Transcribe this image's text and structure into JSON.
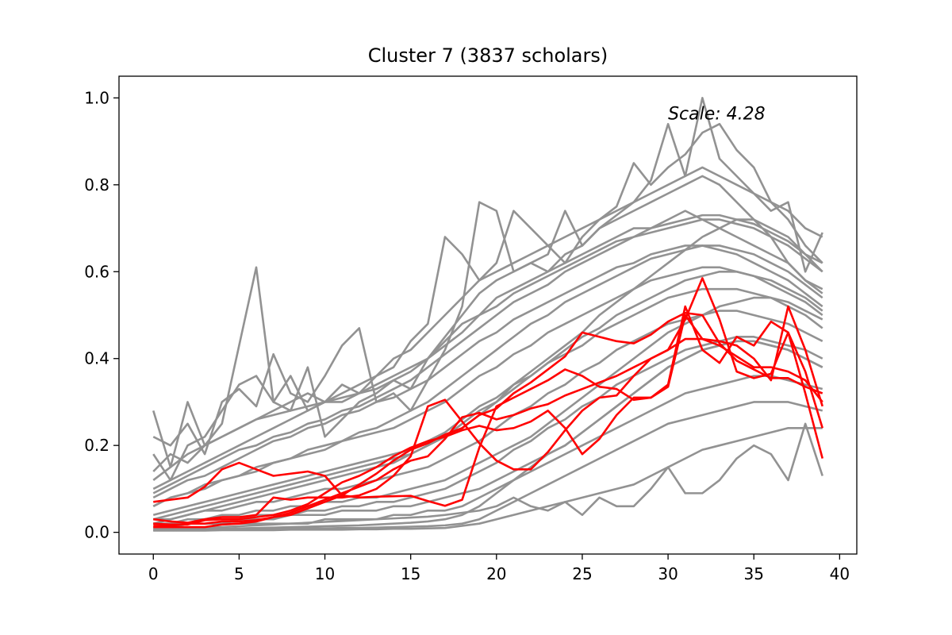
{
  "chart_data": {
    "type": "line",
    "title": "Cluster 7 (3837 scholars)",
    "annotation": "Scale: 4.28",
    "xlabel": "",
    "ylabel": "",
    "xlim": [
      -2,
      41
    ],
    "ylim": [
      -0.05,
      1.05
    ],
    "xticks": [
      0,
      5,
      10,
      15,
      20,
      25,
      30,
      35,
      40
    ],
    "xtick_labels": [
      "0",
      "5",
      "10",
      "15",
      "20",
      "25",
      "30",
      "35",
      "40"
    ],
    "yticks": [
      0.0,
      0.2,
      0.4,
      0.6,
      0.8,
      1.0
    ],
    "ytick_labels": [
      "0.0",
      "0.2",
      "0.4",
      "0.6",
      "0.8",
      "1.0"
    ],
    "grid": false,
    "colors": {
      "background_series": "#929292",
      "highlight_series": "#ff0000"
    },
    "x": [
      0,
      1,
      2,
      3,
      4,
      5,
      6,
      7,
      8,
      9,
      10,
      11,
      12,
      13,
      14,
      15,
      16,
      17,
      18,
      19,
      20,
      21,
      22,
      23,
      24,
      25,
      26,
      27,
      28,
      29,
      30,
      31,
      32,
      33,
      34,
      35,
      36,
      37,
      38,
      39
    ],
    "background_series": [
      {
        "values": [
          0.28,
          0.15,
          0.3,
          0.2,
          0.25,
          0.43,
          0.61,
          0.3,
          0.28,
          0.38,
          0.22,
          0.26,
          0.3,
          0.32,
          0.35,
          0.33,
          0.4,
          0.45,
          0.5,
          0.55,
          0.58,
          0.6,
          0.62,
          0.6,
          0.64,
          0.66,
          0.7,
          0.72,
          0.74,
          0.76,
          0.78,
          0.8,
          0.82,
          0.8,
          0.76,
          0.72,
          0.68,
          0.62,
          0.58,
          0.55
        ]
      },
      {
        "values": [
          0.22,
          0.2,
          0.25,
          0.18,
          0.3,
          0.33,
          0.29,
          0.41,
          0.32,
          0.3,
          0.36,
          0.43,
          0.47,
          0.3,
          0.32,
          0.28,
          0.35,
          0.42,
          0.52,
          0.76,
          0.74,
          0.6,
          0.62,
          0.64,
          0.74,
          0.66,
          0.7,
          0.73,
          0.76,
          0.81,
          0.94,
          0.82,
          1.0,
          0.86,
          0.82,
          0.78,
          0.74,
          0.76,
          0.6,
          0.69
        ]
      },
      {
        "values": [
          0.18,
          0.12,
          0.2,
          0.22,
          0.28,
          0.34,
          0.36,
          0.3,
          0.36,
          0.28,
          0.3,
          0.32,
          0.34,
          0.36,
          0.38,
          0.44,
          0.48,
          0.68,
          0.64,
          0.58,
          0.62,
          0.74,
          0.7,
          0.66,
          0.62,
          0.68,
          0.72,
          0.75,
          0.85,
          0.8,
          0.84,
          0.87,
          0.92,
          0.94,
          0.88,
          0.84,
          0.76,
          0.72,
          0.66,
          0.62
        ]
      },
      {
        "values": [
          0.14,
          0.18,
          0.16,
          0.2,
          0.22,
          0.24,
          0.26,
          0.28,
          0.3,
          0.32,
          0.3,
          0.34,
          0.32,
          0.36,
          0.4,
          0.42,
          0.46,
          0.5,
          0.54,
          0.58,
          0.6,
          0.62,
          0.64,
          0.66,
          0.68,
          0.7,
          0.72,
          0.74,
          0.76,
          0.78,
          0.8,
          0.82,
          0.84,
          0.82,
          0.8,
          0.78,
          0.76,
          0.74,
          0.7,
          0.68
        ]
      },
      {
        "values": [
          0.1,
          0.12,
          0.14,
          0.16,
          0.18,
          0.2,
          0.22,
          0.24,
          0.26,
          0.28,
          0.3,
          0.3,
          0.32,
          0.34,
          0.36,
          0.38,
          0.4,
          0.44,
          0.48,
          0.5,
          0.54,
          0.56,
          0.58,
          0.6,
          0.62,
          0.64,
          0.66,
          0.68,
          0.7,
          0.7,
          0.72,
          0.74,
          0.72,
          0.7,
          0.68,
          0.66,
          0.64,
          0.62,
          0.58,
          0.56
        ]
      },
      {
        "values": [
          0.08,
          0.1,
          0.12,
          0.13,
          0.15,
          0.17,
          0.19,
          0.21,
          0.22,
          0.24,
          0.25,
          0.27,
          0.28,
          0.3,
          0.31,
          0.33,
          0.35,
          0.38,
          0.41,
          0.44,
          0.46,
          0.49,
          0.51,
          0.53,
          0.55,
          0.57,
          0.59,
          0.61,
          0.62,
          0.64,
          0.65,
          0.66,
          0.66,
          0.65,
          0.64,
          0.62,
          0.6,
          0.58,
          0.55,
          0.52
        ]
      },
      {
        "values": [
          0.06,
          0.08,
          0.09,
          0.1,
          0.12,
          0.13,
          0.14,
          0.16,
          0.17,
          0.18,
          0.19,
          0.21,
          0.22,
          0.23,
          0.24,
          0.26,
          0.28,
          0.3,
          0.33,
          0.36,
          0.38,
          0.41,
          0.43,
          0.46,
          0.48,
          0.5,
          0.52,
          0.54,
          0.56,
          0.58,
          0.59,
          0.6,
          0.61,
          0.61,
          0.6,
          0.59,
          0.57,
          0.55,
          0.53,
          0.5
        ]
      },
      {
        "values": [
          0.04,
          0.05,
          0.06,
          0.07,
          0.08,
          0.09,
          0.1,
          0.11,
          0.12,
          0.13,
          0.14,
          0.15,
          0.16,
          0.17,
          0.18,
          0.19,
          0.21,
          0.23,
          0.26,
          0.29,
          0.31,
          0.34,
          0.36,
          0.39,
          0.41,
          0.43,
          0.46,
          0.48,
          0.5,
          0.52,
          0.54,
          0.55,
          0.56,
          0.56,
          0.56,
          0.55,
          0.54,
          0.52,
          0.5,
          0.47
        ]
      },
      {
        "values": [
          0.03,
          0.03,
          0.04,
          0.05,
          0.05,
          0.06,
          0.07,
          0.07,
          0.08,
          0.09,
          0.1,
          0.1,
          0.11,
          0.12,
          0.13,
          0.14,
          0.15,
          0.17,
          0.19,
          0.21,
          0.24,
          0.27,
          0.29,
          0.32,
          0.34,
          0.37,
          0.39,
          0.42,
          0.44,
          0.46,
          0.48,
          0.49,
          0.5,
          0.51,
          0.51,
          0.5,
          0.49,
          0.48,
          0.46,
          0.44
        ]
      },
      {
        "values": [
          0.02,
          0.02,
          0.02,
          0.03,
          0.03,
          0.03,
          0.04,
          0.04,
          0.04,
          0.05,
          0.05,
          0.06,
          0.06,
          0.07,
          0.07,
          0.08,
          0.09,
          0.1,
          0.12,
          0.14,
          0.16,
          0.19,
          0.21,
          0.24,
          0.26,
          0.29,
          0.31,
          0.34,
          0.36,
          0.38,
          0.4,
          0.42,
          0.43,
          0.44,
          0.45,
          0.45,
          0.44,
          0.43,
          0.42,
          0.4
        ]
      },
      {
        "values": [
          0.01,
          0.01,
          0.01,
          0.01,
          0.02,
          0.02,
          0.02,
          0.02,
          0.02,
          0.02,
          0.03,
          0.03,
          0.03,
          0.03,
          0.04,
          0.04,
          0.05,
          0.05,
          0.06,
          0.08,
          0.1,
          0.12,
          0.14,
          0.16,
          0.18,
          0.2,
          0.22,
          0.24,
          0.26,
          0.28,
          0.3,
          0.32,
          0.33,
          0.34,
          0.35,
          0.36,
          0.36,
          0.35,
          0.34,
          0.33
        ]
      },
      {
        "values": [
          0.005,
          0.005,
          0.005,
          0.006,
          0.006,
          0.007,
          0.007,
          0.008,
          0.008,
          0.009,
          0.009,
          0.01,
          0.01,
          0.011,
          0.012,
          0.013,
          0.014,
          0.016,
          0.02,
          0.03,
          0.05,
          0.07,
          0.09,
          0.11,
          0.13,
          0.15,
          0.17,
          0.19,
          0.21,
          0.23,
          0.25,
          0.26,
          0.27,
          0.28,
          0.29,
          0.3,
          0.3,
          0.3,
          0.29,
          0.28
        ]
      },
      {
        "values": [
          0.004,
          0.004,
          0.004,
          0.004,
          0.005,
          0.005,
          0.005,
          0.005,
          0.006,
          0.006,
          0.006,
          0.006,
          0.007,
          0.007,
          0.008,
          0.008,
          0.009,
          0.01,
          0.015,
          0.02,
          0.03,
          0.04,
          0.05,
          0.06,
          0.07,
          0.08,
          0.09,
          0.1,
          0.11,
          0.13,
          0.15,
          0.17,
          0.19,
          0.2,
          0.21,
          0.22,
          0.23,
          0.24,
          0.24,
          0.24
        ]
      },
      {
        "values": [
          0.005,
          0.006,
          0.008,
          0.01,
          0.012,
          0.014,
          0.016,
          0.018,
          0.02,
          0.022,
          0.024,
          0.026,
          0.028,
          0.03,
          0.032,
          0.034,
          0.036,
          0.04,
          0.045,
          0.05,
          0.06,
          0.08,
          0.06,
          0.05,
          0.07,
          0.04,
          0.08,
          0.06,
          0.06,
          0.1,
          0.15,
          0.09,
          0.09,
          0.12,
          0.17,
          0.2,
          0.18,
          0.12,
          0.25,
          0.13
        ]
      },
      {
        "values": [
          0.02,
          0.03,
          0.04,
          0.05,
          0.06,
          0.07,
          0.08,
          0.09,
          0.1,
          0.11,
          0.12,
          0.13,
          0.14,
          0.15,
          0.16,
          0.18,
          0.2,
          0.22,
          0.25,
          0.28,
          0.3,
          0.34,
          0.37,
          0.4,
          0.43,
          0.46,
          0.5,
          0.53,
          0.56,
          0.59,
          0.62,
          0.65,
          0.68,
          0.7,
          0.72,
          0.72,
          0.7,
          0.68,
          0.64,
          0.6
        ]
      },
      {
        "values": [
          0.12,
          0.15,
          0.18,
          0.2,
          0.22,
          0.24,
          0.26,
          0.27,
          0.28,
          0.29,
          0.3,
          0.31,
          0.32,
          0.33,
          0.35,
          0.37,
          0.4,
          0.43,
          0.46,
          0.5,
          0.52,
          0.55,
          0.57,
          0.59,
          0.61,
          0.63,
          0.65,
          0.67,
          0.68,
          0.7,
          0.71,
          0.72,
          0.73,
          0.73,
          0.72,
          0.71,
          0.69,
          0.67,
          0.64,
          0.62
        ]
      },
      {
        "values": [
          0.02,
          0.02,
          0.03,
          0.03,
          0.04,
          0.04,
          0.05,
          0.05,
          0.06,
          0.06,
          0.07,
          0.07,
          0.08,
          0.08,
          0.09,
          0.1,
          0.11,
          0.12,
          0.14,
          0.16,
          0.18,
          0.2,
          0.22,
          0.25,
          0.28,
          0.31,
          0.34,
          0.37,
          0.4,
          0.43,
          0.46,
          0.48,
          0.5,
          0.52,
          0.53,
          0.54,
          0.54,
          0.53,
          0.51,
          0.49
        ]
      },
      {
        "values": [
          0.09,
          0.11,
          0.13,
          0.15,
          0.17,
          0.19,
          0.2,
          0.22,
          0.23,
          0.25,
          0.26,
          0.28,
          0.29,
          0.31,
          0.33,
          0.35,
          0.38,
          0.41,
          0.44,
          0.47,
          0.5,
          0.53,
          0.55,
          0.57,
          0.6,
          0.62,
          0.64,
          0.66,
          0.68,
          0.69,
          0.7,
          0.71,
          0.72,
          0.72,
          0.71,
          0.7,
          0.68,
          0.66,
          0.63,
          0.6
        ]
      },
      {
        "values": [
          0.03,
          0.04,
          0.05,
          0.06,
          0.07,
          0.08,
          0.09,
          0.1,
          0.11,
          0.12,
          0.13,
          0.14,
          0.15,
          0.16,
          0.17,
          0.18,
          0.2,
          0.22,
          0.24,
          0.27,
          0.3,
          0.33,
          0.36,
          0.39,
          0.42,
          0.45,
          0.47,
          0.5,
          0.52,
          0.54,
          0.56,
          0.58,
          0.59,
          0.6,
          0.6,
          0.59,
          0.58,
          0.56,
          0.54,
          0.51
        ]
      },
      {
        "values": [
          0.01,
          0.01,
          0.02,
          0.02,
          0.02,
          0.03,
          0.03,
          0.03,
          0.04,
          0.04,
          0.04,
          0.05,
          0.05,
          0.05,
          0.06,
          0.06,
          0.07,
          0.08,
          0.09,
          0.1,
          0.12,
          0.14,
          0.16,
          0.18,
          0.2,
          0.23,
          0.26,
          0.29,
          0.32,
          0.35,
          0.38,
          0.4,
          0.42,
          0.43,
          0.44,
          0.44,
          0.43,
          0.42,
          0.4,
          0.38
        ]
      },
      {
        "values": [
          0.06,
          0.08,
          0.09,
          0.11,
          0.12,
          0.13,
          0.15,
          0.16,
          0.17,
          0.19,
          0.2,
          0.21,
          0.23,
          0.24,
          0.26,
          0.28,
          0.3,
          0.33,
          0.36,
          0.39,
          0.42,
          0.45,
          0.48,
          0.5,
          0.53,
          0.55,
          0.57,
          0.59,
          0.61,
          0.63,
          0.64,
          0.65,
          0.66,
          0.66,
          0.65,
          0.64,
          0.62,
          0.6,
          0.57,
          0.54
        ]
      },
      {
        "values": [
          0.005,
          0.005,
          0.006,
          0.007,
          0.008,
          0.009,
          0.01,
          0.011,
          0.012,
          0.013,
          0.014,
          0.015,
          0.016,
          0.018,
          0.02,
          0.022,
          0.025,
          0.03,
          0.04,
          0.06,
          0.09,
          0.12,
          0.15,
          0.18,
          0.2,
          0.23,
          0.26,
          0.29,
          0.32,
          0.35,
          0.38,
          0.4,
          0.42,
          0.43,
          0.44,
          0.44,
          0.43,
          0.42,
          0.4,
          0.38
        ]
      }
    ],
    "highlight_series": [
      {
        "values": [
          0.07,
          0.075,
          0.08,
          0.105,
          0.145,
          0.16,
          0.145,
          0.13,
          0.135,
          0.14,
          0.13,
          0.085,
          0.08,
          0.082,
          0.083,
          0.084,
          0.072,
          0.061,
          0.075,
          0.195,
          0.29,
          0.31,
          0.33,
          0.35,
          0.375,
          0.36,
          0.335,
          0.33,
          0.305,
          0.31,
          0.335,
          0.5,
          0.445,
          0.43,
          0.405,
          0.38,
          0.38,
          0.37,
          0.35,
          0.3
        ]
      },
      {
        "values": [
          0.03,
          0.025,
          0.022,
          0.03,
          0.035,
          0.035,
          0.04,
          0.08,
          0.075,
          0.08,
          0.08,
          0.08,
          0.085,
          0.1,
          0.13,
          0.175,
          0.29,
          0.305,
          0.255,
          0.205,
          0.165,
          0.145,
          0.145,
          0.185,
          0.235,
          0.28,
          0.31,
          0.315,
          0.36,
          0.4,
          0.42,
          0.49,
          0.585,
          0.49,
          0.37,
          0.355,
          0.365,
          0.46,
          0.32,
          0.17
        ]
      },
      {
        "values": [
          0.02,
          0.018,
          0.018,
          0.028,
          0.03,
          0.03,
          0.035,
          0.04,
          0.05,
          0.065,
          0.09,
          0.115,
          0.13,
          0.15,
          0.175,
          0.195,
          0.21,
          0.22,
          0.235,
          0.245,
          0.235,
          0.24,
          0.255,
          0.28,
          0.24,
          0.18,
          0.215,
          0.27,
          0.31,
          0.31,
          0.34,
          0.52,
          0.42,
          0.39,
          0.45,
          0.43,
          0.485,
          0.46,
          0.37,
          0.24
        ]
      },
      {
        "values": [
          0.015,
          0.015,
          0.02,
          0.02,
          0.025,
          0.025,
          0.028,
          0.035,
          0.045,
          0.06,
          0.075,
          0.09,
          0.105,
          0.12,
          0.145,
          0.165,
          0.175,
          0.215,
          0.265,
          0.275,
          0.26,
          0.27,
          0.285,
          0.295,
          0.315,
          0.33,
          0.345,
          0.36,
          0.38,
          0.4,
          0.42,
          0.445,
          0.445,
          0.44,
          0.43,
          0.4,
          0.35,
          0.52,
          0.42,
          0.29
        ]
      },
      {
        "values": [
          0.012,
          0.012,
          0.012,
          0.012,
          0.018,
          0.02,
          0.025,
          0.035,
          0.04,
          0.055,
          0.07,
          0.085,
          0.11,
          0.135,
          0.165,
          0.19,
          0.205,
          0.225,
          0.24,
          0.27,
          0.285,
          0.32,
          0.345,
          0.375,
          0.405,
          0.46,
          0.45,
          0.44,
          0.435,
          0.455,
          0.485,
          0.505,
          0.5,
          0.435,
          0.395,
          0.375,
          0.355,
          0.355,
          0.335,
          0.32
        ]
      }
    ]
  }
}
